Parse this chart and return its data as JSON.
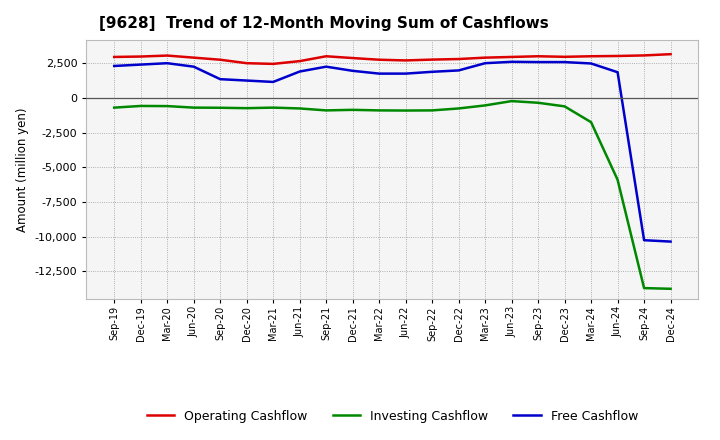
{
  "title": "[9628]  Trend of 12-Month Moving Sum of Cashflows",
  "ylabel": "Amount (million yen)",
  "x_labels": [
    "Sep-19",
    "Dec-19",
    "Mar-20",
    "Jun-20",
    "Sep-20",
    "Dec-20",
    "Mar-21",
    "Jun-21",
    "Sep-21",
    "Dec-21",
    "Mar-22",
    "Jun-22",
    "Sep-22",
    "Dec-22",
    "Mar-23",
    "Jun-23",
    "Sep-23",
    "Dec-23",
    "Mar-24",
    "Jun-24",
    "Sep-24",
    "Dec-24"
  ],
  "operating": [
    2950,
    2980,
    3050,
    2900,
    2750,
    2500,
    2450,
    2650,
    3000,
    2870,
    2750,
    2700,
    2760,
    2800,
    2900,
    2950,
    3000,
    2960,
    3000,
    3020,
    3060,
    3150
  ],
  "investing": [
    -700,
    -580,
    -590,
    -700,
    -710,
    -740,
    -700,
    -760,
    -900,
    -860,
    -900,
    -910,
    -900,
    -760,
    -540,
    -230,
    -350,
    -610,
    -1750,
    -5900,
    -13700,
    -13750
  ],
  "free": [
    2300,
    2400,
    2500,
    2250,
    1350,
    1250,
    1150,
    1900,
    2250,
    1950,
    1750,
    1750,
    1880,
    1980,
    2500,
    2600,
    2580,
    2580,
    2480,
    1850,
    -10250,
    -10350
  ],
  "operating_color": "#dd0000",
  "investing_color": "#008800",
  "free_color": "#0000cc",
  "ylim_min": -14500,
  "ylim_max": 4200,
  "yticks": [
    2500,
    0,
    -2500,
    -5000,
    -7500,
    -10000,
    -12500
  ],
  "background_color": "#ffffff",
  "plot_bg_color": "#f5f5f5",
  "grid_color": "#999999",
  "legend_labels": [
    "Operating Cashflow",
    "Investing Cashflow",
    "Free Cashflow"
  ]
}
